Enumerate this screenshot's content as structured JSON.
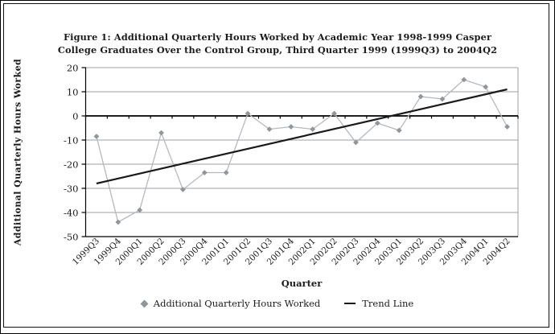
{
  "figure": {
    "title_lines": [
      "Figure 1: Additional Quarterly Hours Worked by Academic Year 1998-1999 Casper",
      "College Graduates Over the Control Group, Third Quarter 1999 (1999Q3) to 2004Q2"
    ]
  },
  "chart_data": {
    "type": "line",
    "title": "Figure 1: Additional Quarterly Hours Worked by Academic Year 1998-1999 Casper College Graduates Over the Control Group, Third Quarter 1999 (1999Q3) to 2004Q2",
    "xlabel": "Quarter",
    "ylabel": "Additional Quarterly Hours Worked",
    "ylim": [
      -50,
      20
    ],
    "yticks": [
      20,
      10,
      0,
      -10,
      -20,
      -30,
      -40,
      -50
    ],
    "grid": true,
    "legend_position": "bottom",
    "categories": [
      "1999Q3",
      "1999Q4",
      "2000Q1",
      "2000Q2",
      "2000Q3",
      "2000Q4",
      "2001Q1",
      "2001Q2",
      "2001Q3",
      "2001Q4",
      "2002Q1",
      "2002Q2",
      "2002Q3",
      "2002Q4",
      "2003Q1",
      "2003Q2",
      "2003Q3",
      "2003Q4",
      "2004Q1",
      "2004Q2"
    ],
    "series": [
      {
        "name": "Additional Quarterly Hours Worked",
        "type": "line+markers",
        "marker": "diamond",
        "color": "#b4b9be",
        "marker_color": "#8f969c",
        "values": [
          -8.5,
          -44,
          -39,
          -7,
          -30.5,
          -23.5,
          -23.5,
          1,
          -5.5,
          -4.5,
          -5.5,
          1,
          -11,
          -3,
          -6,
          8,
          7,
          15,
          12,
          -4.5
        ]
      },
      {
        "name": "Trend Line",
        "type": "line",
        "color": "#1a1a1a",
        "trend": {
          "start_value": -28,
          "end_value": 11
        }
      }
    ]
  },
  "colors": {
    "gridline": "#9aa0a5",
    "plot_border": "#9aa0a5",
    "axis": "#000000",
    "text": "#1a1a1a"
  }
}
